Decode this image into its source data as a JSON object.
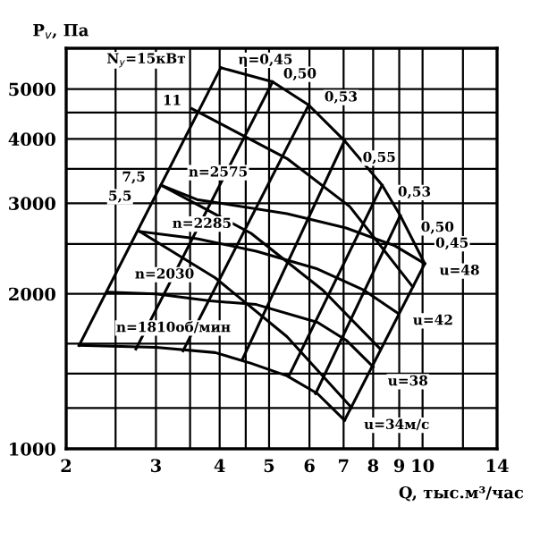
{
  "chart_data": {
    "type": "line",
    "xlabel": "Q, тыс.м³/час",
    "ylabel": "P$_{v}$, Па",
    "log": "xy",
    "grid": true,
    "marker": "none",
    "line_style": "solid",
    "xlim": [
      2,
      14
    ],
    "ylim": [
      1000,
      6000
    ],
    "xticks": [
      2,
      {
        "value": 2.5,
        "label": null
      },
      3,
      {
        "value": 3.5,
        "label": null
      },
      4,
      {
        "value": 4.5,
        "label": null
      },
      5,
      6,
      7,
      8,
      9,
      10,
      {
        "value": 12,
        "label": null
      },
      14
    ],
    "yticks": [
      1000,
      {
        "value": 1200,
        "label": null
      },
      {
        "value": 1400,
        "label": null
      },
      {
        "value": 1600,
        "label": null
      },
      2000,
      {
        "value": 2500,
        "label": null
      },
      3000,
      {
        "value": 3500,
        "label": null
      },
      4000,
      {
        "value": 4500,
        "label": null
      },
      5000
    ],
    "series": [
      {
        "color": "#000000",
        "x": [
          3.07,
          3.61,
          5.42,
          7.08,
          8.82,
          10.1
        ],
        "values": [
          3253,
          3050,
          2862,
          2686,
          2480,
          2290
        ]
      },
      {
        "color": "#000000",
        "x": [
          2.79,
          3.61,
          4.72,
          6.22,
          7.68,
          8.96
        ],
        "values": [
          2643,
          2560,
          2421,
          2236,
          2032,
          1832
        ]
      },
      {
        "color": "#000000",
        "x": [
          2.41,
          3.0,
          3.83,
          4.72,
          6.22,
          7.08,
          8.0
        ],
        "values": [
          2016,
          2000,
          1938,
          1907,
          1761,
          1626,
          1443
        ]
      },
      {
        "color": "#000000",
        "x": [
          2.12,
          3.0,
          3.92,
          4.61,
          5.42,
          6.22,
          7.03
        ],
        "values": [
          1588,
          1575,
          1538,
          1466,
          1386,
          1280,
          1136
        ]
      },
      {
        "color": "#000000",
        "x": [
          2.12,
          4.02
        ],
        "values": [
          1588,
          5500
        ]
      },
      {
        "color": "#000000",
        "x": [
          7.03,
          10.1
        ],
        "values": [
          1136,
          2290
        ]
      },
      {
        "color": "#000000",
        "x": [
          2.74,
          5.08
        ],
        "values": [
          1563,
          5163
        ]
      },
      {
        "color": "#000000",
        "x": [
          3.39,
          5.98
        ],
        "values": [
          1550,
          4655
        ]
      },
      {
        "color": "#000000",
        "x": [
          4.43,
          7.03
        ],
        "values": [
          1489,
          3968
        ]
      },
      {
        "color": "#000000",
        "x": [
          5.47,
          8.33
        ],
        "values": [
          1386,
          3253
        ]
      },
      {
        "color": "#000000",
        "x": [
          6.17,
          9.04
        ],
        "values": [
          1280,
          2840
        ]
      },
      {
        "color": "#000000",
        "x": [
          4.02,
          5.08,
          5.98,
          7.03,
          8.33,
          9.04,
          10.1
        ],
        "values": [
          5500,
          5163,
          4655,
          3968,
          3253,
          2840,
          2290
        ]
      },
      {
        "color": "#000000",
        "x": [
          3.53,
          5.42,
          7.2,
          9.56
        ],
        "values": [
          4580,
          3664,
          2955,
          2065
        ]
      },
      {
        "color": "#000000",
        "x": [
          3.07,
          4.61,
          6.38,
          8.26
        ],
        "values": [
          3253,
          2622,
          2032,
          1563
        ]
      },
      {
        "color": "#000000",
        "x": [
          2.79,
          3.92,
          5.42,
          7.26
        ],
        "values": [
          2643,
          2149,
          1652,
          1201
        ]
      }
    ],
    "annotations": [
      {
        "text": "N$_{y}$=15кВт",
        "x": 4.02,
        "y": 5500
      },
      {
        "text": "η=0,45",
        "x": 4.02,
        "y": 5500
      },
      {
        "text": "0,50",
        "x": 5.08,
        "y": 5163
      },
      {
        "text": "0,53",
        "x": 5.98,
        "y": 4655
      },
      {
        "text": "0,55",
        "x": 7.03,
        "y": 3968
      },
      {
        "text": "0,53",
        "x": 8.33,
        "y": 3253
      },
      {
        "text": "0,50",
        "x": 9.04,
        "y": 2840
      },
      {
        "text": "0,45",
        "x": 10.1,
        "y": 2290
      },
      {
        "text": "u=48",
        "x": 10.1,
        "y": 2290
      },
      {
        "text": "11",
        "x": 3.53,
        "y": 4580
      },
      {
        "text": "7,5",
        "x": 3.07,
        "y": 3253
      },
      {
        "text": "5,5",
        "x": 2.79,
        "y": 2643
      },
      {
        "text": "n=2575",
        "x": 3.07,
        "y": 3253
      },
      {
        "text": "n=2285",
        "x": 2.79,
        "y": 2643
      },
      {
        "text": "n=2030",
        "x": 2.41,
        "y": 2016
      },
      {
        "text": "n=1810об/мин",
        "x": 2.12,
        "y": 1588
      },
      {
        "text": "u=42",
        "x": 8.96,
        "y": 1832
      },
      {
        "text": "u=38",
        "x": 8.0,
        "y": 1443
      },
      {
        "text": "u=34м/с",
        "x": 7.03,
        "y": 1136
      }
    ]
  }
}
